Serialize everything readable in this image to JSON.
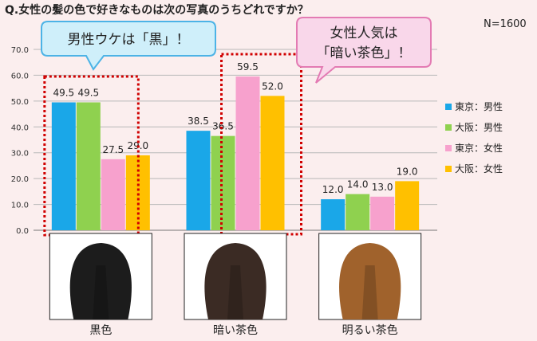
{
  "question": "Q.女性の髪の色で好きなものは次の写真のうちどれですか？",
  "sample_size": "N=1600",
  "callouts": {
    "left": "男性ウケは「黒」！",
    "right_line1": "女性人気は",
    "right_line2": "「暗い茶色」！"
  },
  "colors": {
    "tokyo_male": "#1aa7e8",
    "osaka_male": "#8fd14f",
    "tokyo_female": "#f7a1cd",
    "osaka_female": "#ffc000",
    "highlight": "#d00000",
    "callout_left_fill": "#cfeffa",
    "callout_left_stroke": "#4cb3e6",
    "callout_right_fill": "#f9d7ea",
    "callout_right_stroke": "#e37bb3"
  },
  "photos": [
    {
      "label": "黒色",
      "hair": "#1c1c1c"
    },
    {
      "label": "暗い茶色",
      "hair": "#3b2b24"
    },
    {
      "label": "明るい茶色",
      "hair": "#a0622c"
    }
  ],
  "chart_data": {
    "type": "bar",
    "categories": [
      "黒色",
      "暗い茶色",
      "明るい茶色"
    ],
    "series": [
      {
        "name": "東京：男性",
        "values": [
          49.5,
          38.5,
          12.0
        ]
      },
      {
        "name": "大阪：男性",
        "values": [
          49.5,
          36.5,
          14.0
        ]
      },
      {
        "name": "東京：女性",
        "values": [
          27.5,
          59.5,
          13.0
        ]
      },
      {
        "name": "大阪：女性",
        "values": [
          29.0,
          52.0,
          19.0
        ]
      }
    ],
    "yticks": [
      "0.0",
      "10.0",
      "20.0",
      "30.0",
      "40.0",
      "50.0",
      "60.0",
      "70.0"
    ],
    "ylim": [
      0,
      70
    ],
    "grid": true,
    "legend": "right"
  }
}
